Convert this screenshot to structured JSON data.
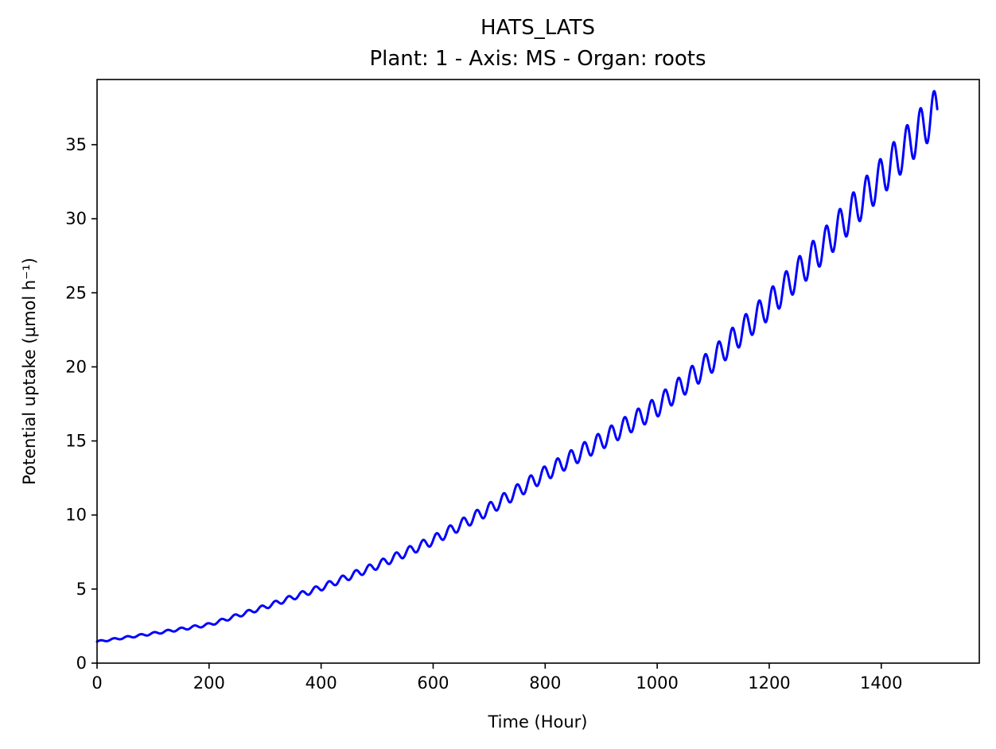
{
  "chart_data": {
    "type": "line",
    "title": "HATS_LATS",
    "subtitle": "Plant: 1 - Axis: MS - Organ: roots",
    "xlabel": "Time (Hour)",
    "ylabel": "Potential uptake (µmol h⁻¹)",
    "xlim": [
      0,
      1575
    ],
    "ylim": [
      0,
      39.4
    ],
    "xticks": [
      0,
      200,
      400,
      600,
      800,
      1000,
      1200,
      1400
    ],
    "yticks": [
      0,
      5,
      10,
      15,
      20,
      25,
      30,
      35
    ],
    "grid": false,
    "line_color": "#0000ff",
    "x": [
      0,
      100,
      200,
      300,
      400,
      500,
      600,
      700,
      800,
      900,
      1000,
      1100,
      1200,
      1300,
      1400,
      1500
    ],
    "values": [
      1.45,
      2.0,
      2.6,
      3.8,
      5.1,
      6.6,
      8.3,
      10.4,
      12.8,
      15.0,
      17.3,
      20.5,
      24.2,
      28.3,
      32.8,
      37.4
    ],
    "oscillation_period": 24,
    "oscillation_relative_amplitude": 0.04
  }
}
